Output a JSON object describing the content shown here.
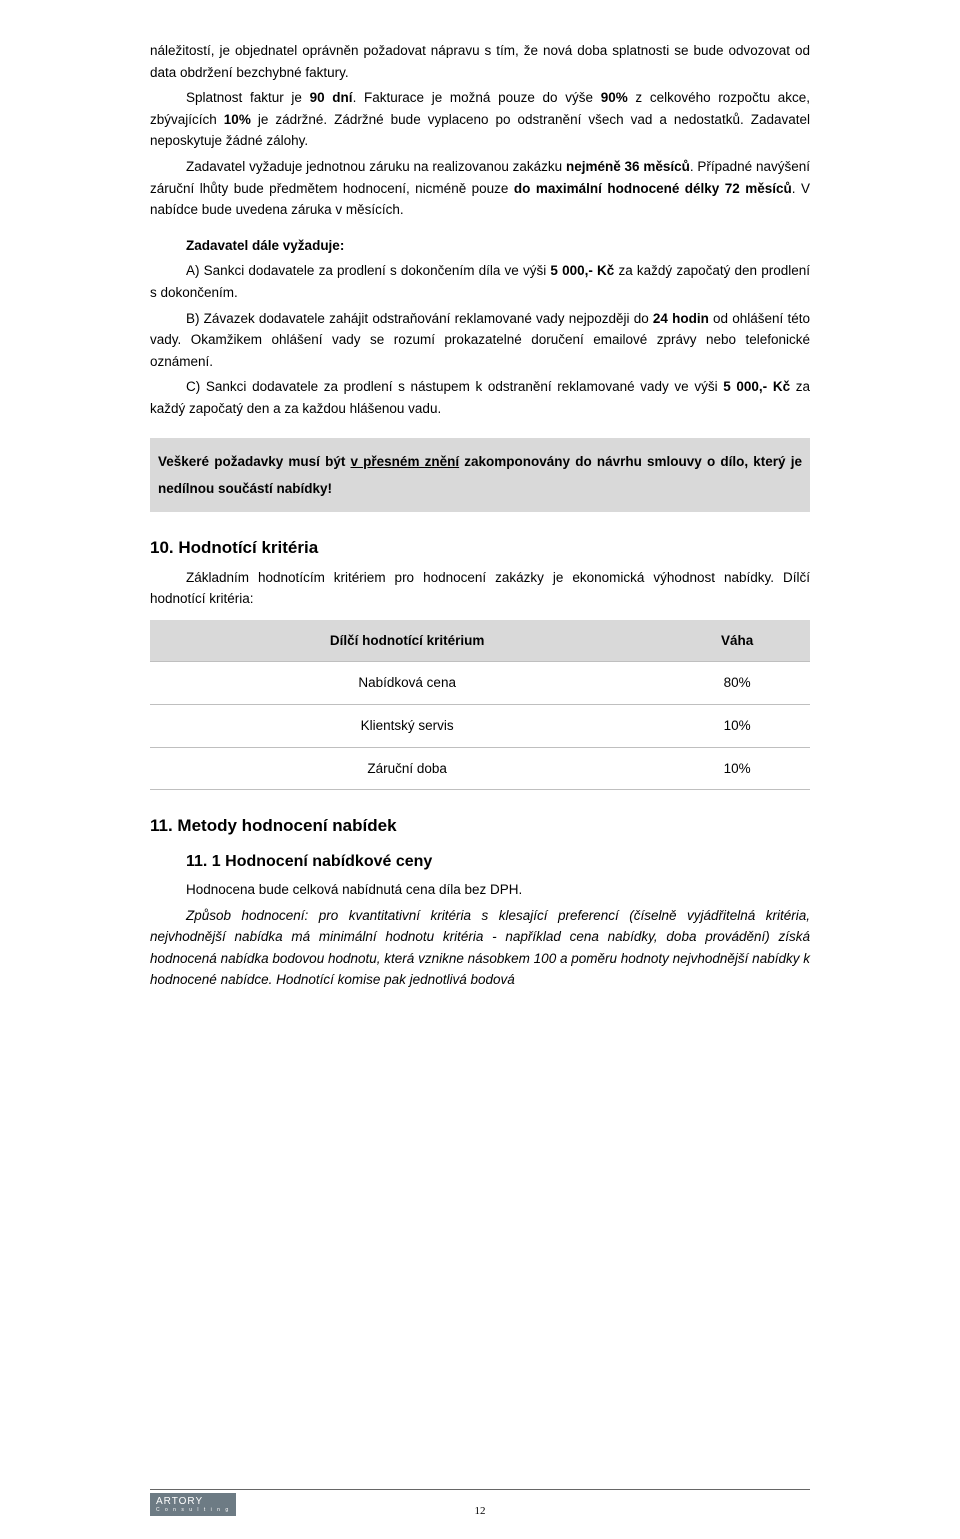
{
  "para1": {
    "pre": "náležitostí, je objednatel oprávněn požadovat nápravu s tím, že nová doba splatnosti se bude odvozovat od data obdržení bezchybné faktury.",
    "sentence2_prefix": "Splatnost faktur je ",
    "sentence2_bold": "90 dní",
    "sentence2_suffix": ". Fakturace je možná pouze do výše ",
    "ninety": "90%",
    "mid1": " z celkového rozpočtu akce, zbývajících ",
    "ten": "10%",
    "mid2": " je zádržné. Zádržné bude vyplaceno po  odstranění všech vad a nedostatků. Zadavatel neposkytuje žádné zálohy."
  },
  "para2": {
    "pre": "Zadavatel vyžaduje jednotnou záruku na realizovanou zakázku ",
    "b1": "nejméně 36 měsíců",
    "mid": ". Případné navýšení záruční lhůty bude předmětem hodnocení, nicméně pouze ",
    "b2": "do maximální hodnocené délky 72 měsíců",
    "post": ". V nabídce bude uvedena záruka v měsících."
  },
  "req_heading": "Zadavatel dále vyžaduje:",
  "req_a": {
    "pre": "A) Sankci dodavatele za prodlení s dokončením díla ve výši ",
    "b": "5 000,- Kč",
    "post": " za každý započatý den prodlení s dokončením."
  },
  "req_b": {
    "pre": "B) Závazek dodavatele zahájit odstraňování reklamované vady nejpozději do ",
    "b": "24 hodin",
    "post": " od ohlášení této vady. Okamžikem ohlášení vady se rozumí prokazatelné doručení emailové zprávy nebo telefonické oznámení."
  },
  "req_c": {
    "pre": "C) Sankci dodavatele za prodlení s nástupem k odstranění reklamované vady ve výši ",
    "b": "5 000,- Kč",
    "post": " za každý započatý den a za každou hlášenou vadu."
  },
  "box": {
    "pre": "Veškeré požadavky musí být ",
    "u": "v přesném znění",
    "post": " zakomponovány do návrhu smlouvy o dílo, který je nedílnou součástí nabídky!"
  },
  "h10": "10. Hodnotící kritéria",
  "p10": "Základním hodnotícím kritériem pro hodnocení zakázky je ekonomická výhodnost nabídky. Dílčí hodnotící kritéria:",
  "table": {
    "header1": "Dílčí hodnotící kritérium",
    "header2": "Váha",
    "rows": [
      {
        "label": "Nabídková cena",
        "weight": "80%"
      },
      {
        "label": "Klientský servis",
        "weight": "10%"
      },
      {
        "label": "Záruční doba",
        "weight": "10%"
      }
    ]
  },
  "h11": "11. Metody hodnocení nabídek",
  "h11_1": "11. 1 Hodnocení nabídkové ceny",
  "p11a": "Hodnocena bude celková nabídnutá cena díla bez DPH.",
  "p11b": "Způsob hodnocení: pro kvantitativní kritéria s klesající preferencí (číselně vyjádřitelná kritéria, nejvhodnější nabídka má minimální hodnotu kritéria - například cena nabídky, doba provádění) získá hodnocená nabídka bodovou hodnotu, která vznikne násobkem 100 a poměru hodnoty nejvhodnější nabídky k hodnocené nabídce. Hodnotící komise pak jednotlivá bodová",
  "footer": {
    "brand": "ARTORY",
    "sub": "C o n s u l t i n g"
  },
  "page_number": "12"
}
